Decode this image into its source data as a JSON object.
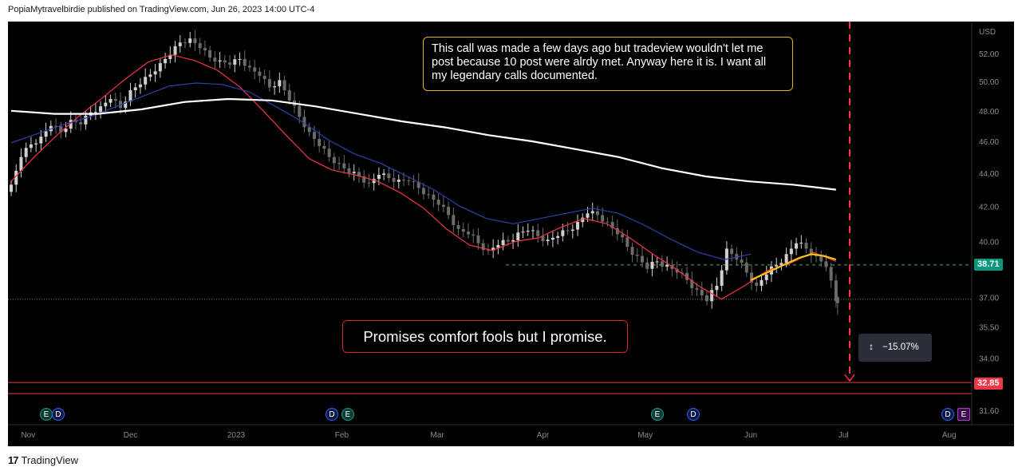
{
  "header": {
    "attribution": "PopiaMytravelbirdie published on TradingView.com, Jun 26, 2023 14:00 UTC-4"
  },
  "footer": {
    "logo_mark": "17",
    "logo_text": "TradingView"
  },
  "annotations": {
    "note_text": "This call was made a few days ago but tradeview wouldn't let me post because 10 post were alrdy met. Anyway here it is. I want all my legendary calls documented.",
    "promise_text": "Promises comfort fools but I promise.",
    "measure_text": "−15.07%"
  },
  "badges": {
    "last_price": "38.71",
    "target": "32.85"
  },
  "events": [
    {
      "letter": "E",
      "kind": "earnings",
      "month": "Nov"
    },
    {
      "letter": "D",
      "kind": "dividend",
      "month": "Nov"
    },
    {
      "letter": "D",
      "kind": "dividend",
      "month": "Feb"
    },
    {
      "letter": "E",
      "kind": "earnings",
      "month": "Feb"
    },
    {
      "letter": "E",
      "kind": "earnings",
      "month": "May"
    },
    {
      "letter": "D",
      "kind": "dividend",
      "month": "May"
    },
    {
      "letter": "D",
      "kind": "dividend",
      "month": "Aug"
    },
    {
      "letter": "E",
      "kind": "earnings-upcoming",
      "month": "Aug"
    }
  ],
  "colors": {
    "background": "#000000",
    "candle_up": "#d0d0d0",
    "candle_down": "#6b6b6b",
    "ma_fast": "#f23645",
    "ma_mid": "#2b43a8",
    "ma_slow": "#ffffff",
    "ma_short": "#f5c21b",
    "target_line": "#f23645",
    "last_price_line": "#4caf50",
    "note_border": "#d7b61f",
    "promise_border": "#d9261f"
  },
  "chart_data": {
    "type": "candlestick",
    "currency": "USD",
    "y_axis_ticks": [
      "52.00",
      "50.00",
      "48.00",
      "46.00",
      "44.00",
      "42.00",
      "40.00",
      "38.71",
      "37.00",
      "35.50",
      "34.00",
      "32.85",
      "31.60"
    ],
    "x_axis_ticks": [
      "Nov",
      "Dec",
      "2023",
      "Feb",
      "Mar",
      "Apr",
      "May",
      "Jun",
      "Jul",
      "Aug"
    ],
    "scale": "log",
    "ylim": [
      31.3,
      53.5
    ],
    "close_series": {
      "start": "2022-10-27",
      "end": "2023-06-26",
      "approx_closes": [
        43.3,
        45.0,
        45.8,
        46.3,
        47.0,
        46.6,
        47.4,
        47.1,
        47.9,
        48.3,
        48.8,
        48.2,
        49.4,
        49.8,
        50.5,
        51.3,
        51.9,
        52.8,
        53.1,
        52.4,
        51.7,
        51.5,
        51.2,
        51.6,
        51.0,
        50.4,
        49.6,
        50.1,
        48.7,
        47.6,
        46.6,
        45.7,
        45.0,
        44.6,
        44.0,
        43.8,
        43.4,
        43.9,
        43.7,
        43.6,
        43.5,
        43.1,
        42.7,
        42.1,
        41.5,
        40.7,
        40.4,
        39.9,
        39.5,
        39.8,
        40.0,
        40.5,
        40.6,
        40.3,
        40.1,
        40.3,
        40.6,
        41.1,
        41.6,
        41.5,
        41.1,
        40.4,
        39.7,
        39.2,
        38.5,
        38.9,
        38.7,
        38.3,
        37.9,
        37.4,
        36.8,
        37.6,
        39.6,
        39.0,
        38.3,
        37.6,
        38.2,
        38.7,
        39.3,
        39.9,
        39.6,
        39.2,
        38.6,
        36.8
      ],
      "last_price": 38.71,
      "projected_target": 32.85,
      "projected_change_pct": -15.07
    },
    "moving_averages": [
      {
        "color": "#f23645",
        "approx_values": [
          43.5,
          45.0,
          46.4,
          47.7,
          48.9,
          50.2,
          51.4,
          51.9,
          51.5,
          50.8,
          49.6,
          48.0,
          46.4,
          44.9,
          44.2,
          43.9,
          43.5,
          42.8,
          41.9,
          40.7,
          39.8,
          39.5,
          40.0,
          40.2,
          40.8,
          41.3,
          41.0,
          40.2,
          39.3,
          38.5,
          37.6,
          36.9,
          37.6,
          38.4,
          38.8,
          39.4,
          38.9
        ]
      },
      {
        "color": "#2b43a8",
        "approx_values": [
          45.9,
          46.5,
          47.1,
          47.6,
          48.3,
          49.0,
          49.7,
          49.9,
          49.8,
          49.3,
          48.3,
          47.3,
          46.1,
          45.2,
          44.6,
          43.8,
          43.0,
          42.0,
          41.3,
          41.0,
          41.3,
          41.6,
          41.9,
          41.6,
          40.9,
          40.1,
          39.4,
          39.0,
          39.3
        ]
      },
      {
        "color": "#ffffff",
        "approx_values": [
          48.0,
          47.8,
          47.8,
          48.1,
          48.6,
          48.8,
          48.7,
          48.3,
          47.8,
          47.3,
          46.9,
          46.4,
          46.0,
          45.5,
          45.0,
          44.3,
          43.8,
          43.5,
          43.3,
          43.0
        ]
      }
    ],
    "horizontal_levels": [
      {
        "value": 38.71,
        "style": "dashed",
        "color": "#4caf50"
      },
      {
        "value": 36.9,
        "style": "dotted",
        "color": "#787b86"
      },
      {
        "value": 32.85,
        "style": "solid",
        "color": "#f23645"
      },
      {
        "value": 32.35,
        "style": "solid",
        "color": "#f23645"
      }
    ],
    "vertical_marker": {
      "date": "2023-06-30",
      "style": "dashed",
      "color": "#f23645"
    }
  }
}
